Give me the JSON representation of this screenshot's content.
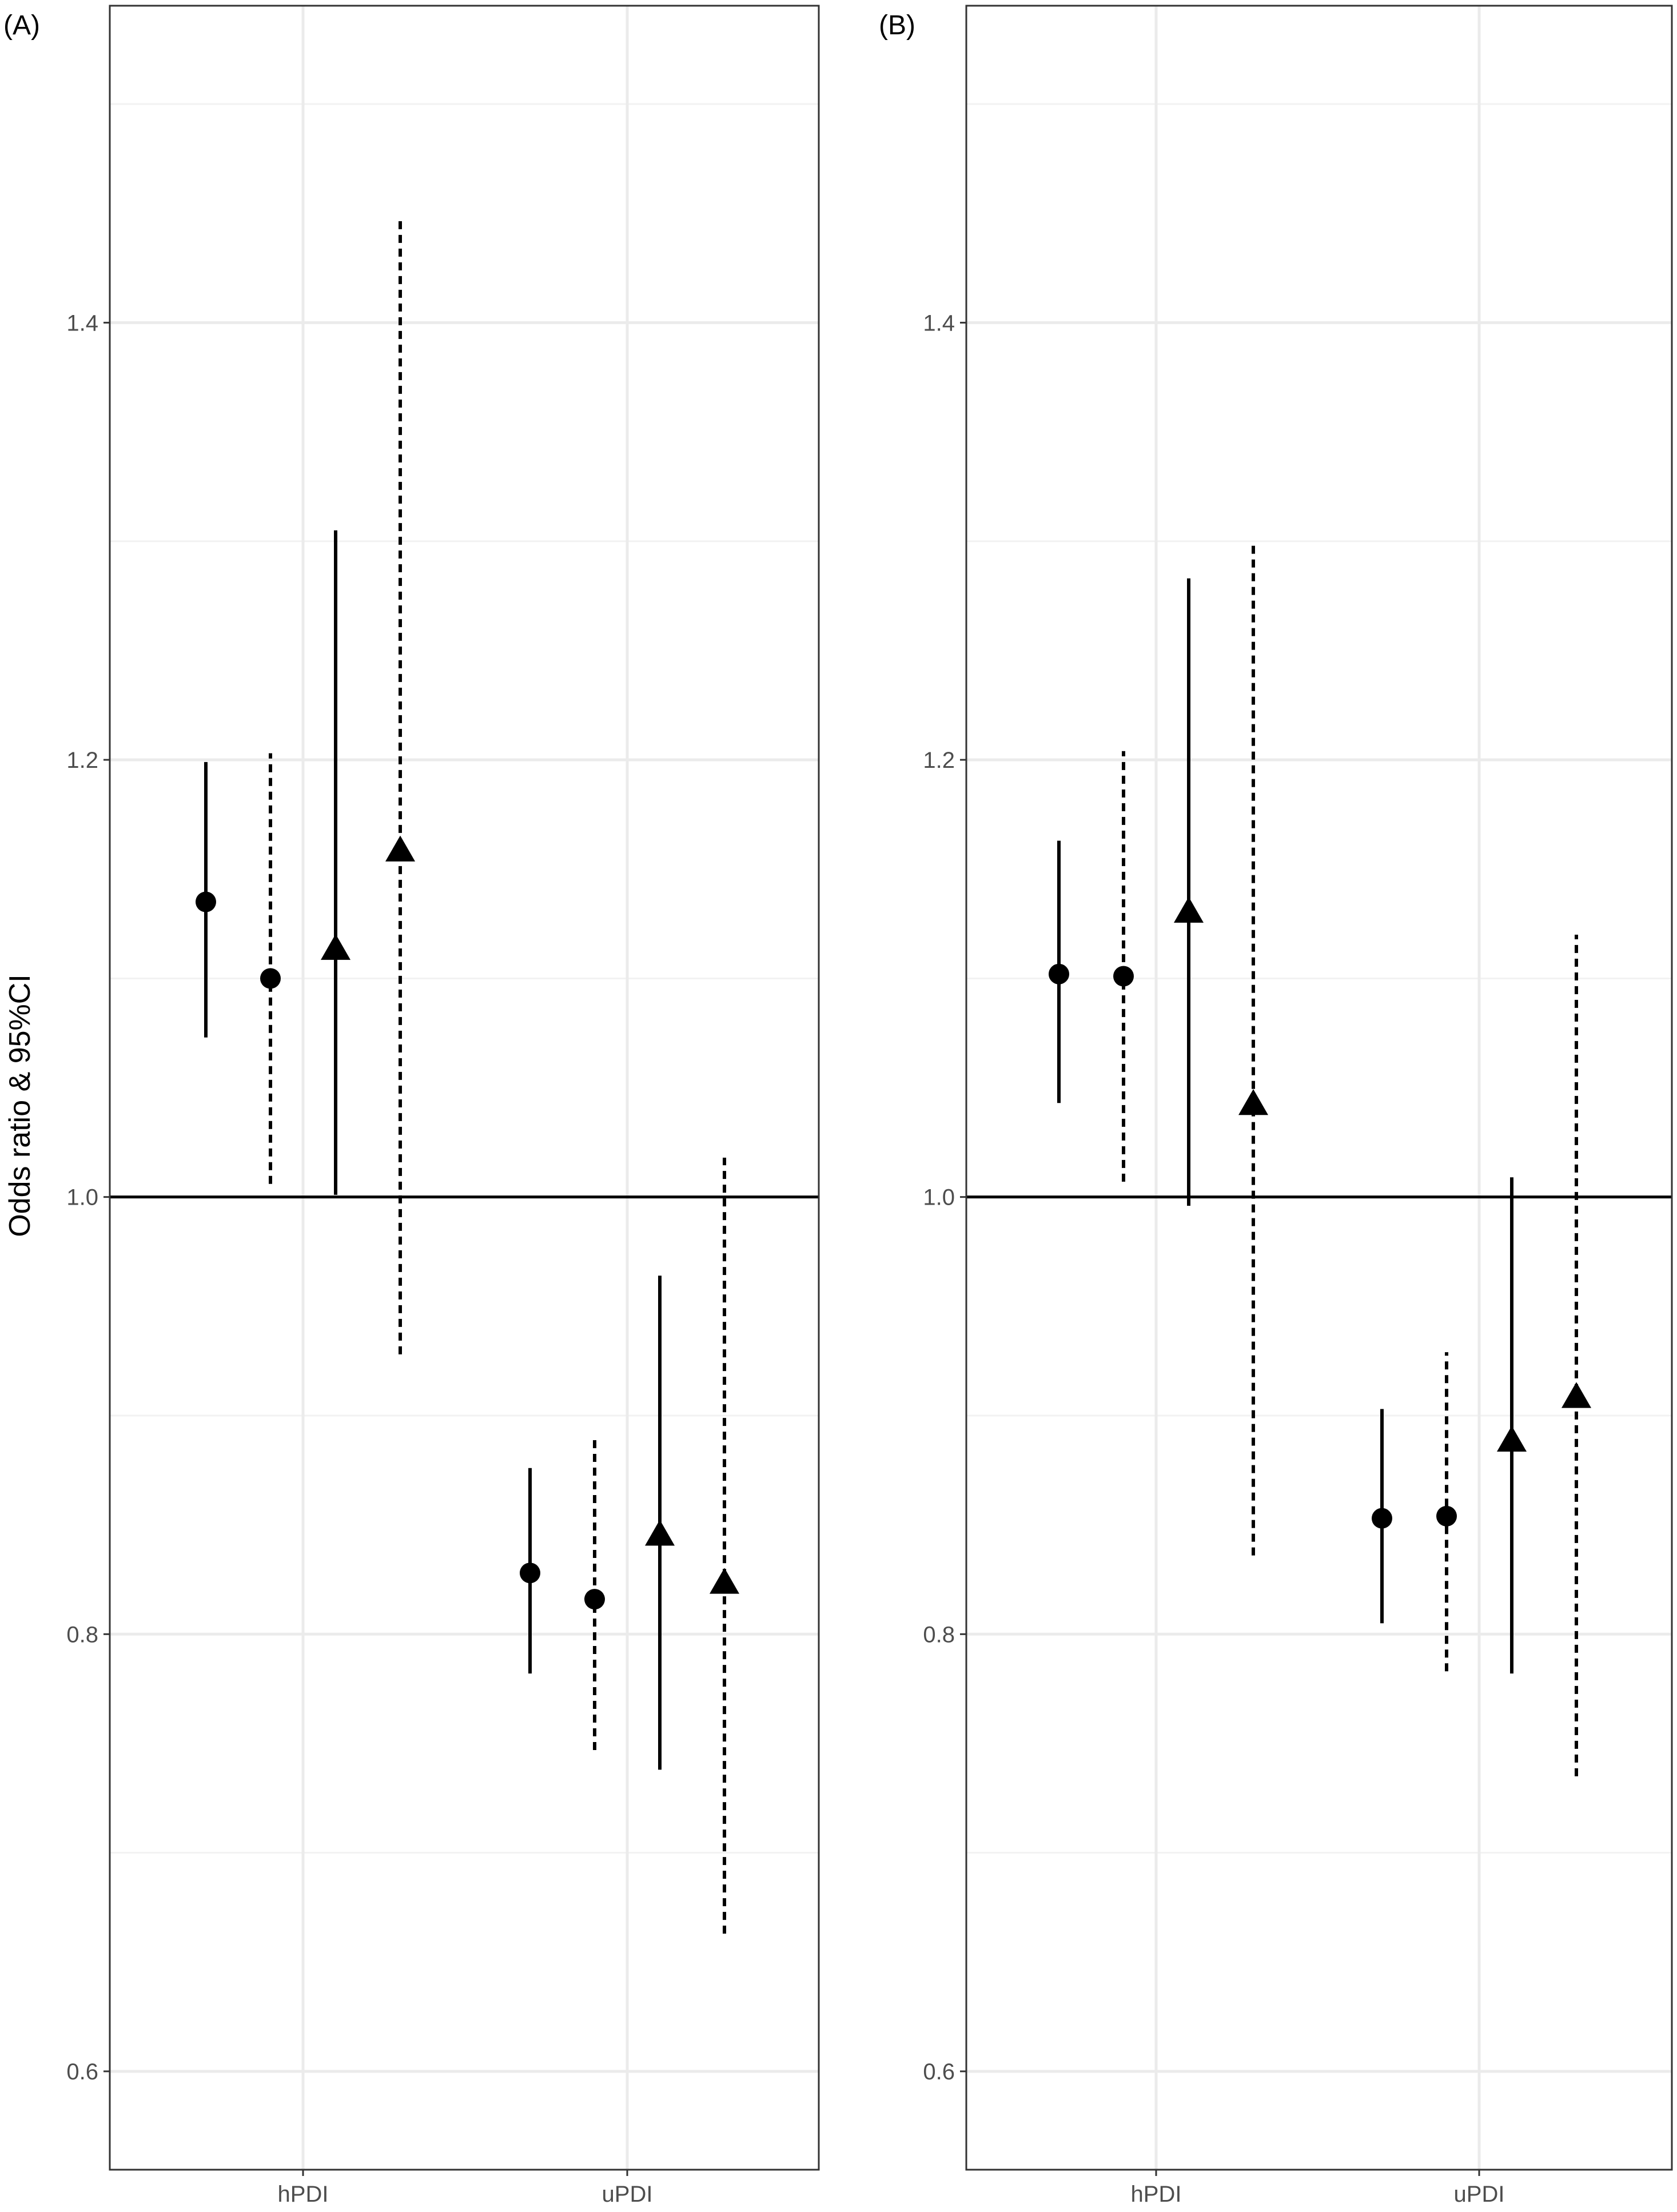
{
  "chart_data": [
    {
      "type": "scatter",
      "panel_label": "(A)",
      "ylabel": "Odds ratio & 95%CI",
      "categories": [
        "hPDI",
        "uPDI"
      ],
      "yticks": [
        0.6,
        0.8,
        1.0,
        1.2,
        1.4
      ],
      "ytick_labels": [
        "0.6",
        "0.8",
        "1.0",
        "1.2",
        "1.4"
      ],
      "ylim": [
        0.555,
        1.545
      ],
      "reference_line": 1.0,
      "grid": true,
      "estimates": [
        {
          "category": "hPDI",
          "slot": 0,
          "shape": "circle",
          "line": "solid",
          "or": 1.135,
          "lower": 1.073,
          "upper": 1.199
        },
        {
          "category": "hPDI",
          "slot": 1,
          "shape": "circle",
          "line": "dashed",
          "or": 1.1,
          "lower": 1.006,
          "upper": 1.203
        },
        {
          "category": "hPDI",
          "slot": 2,
          "shape": "triangle",
          "line": "solid",
          "or": 1.113,
          "lower": 1.001,
          "upper": 1.305
        },
        {
          "category": "hPDI",
          "slot": 3,
          "shape": "triangle",
          "line": "dashed",
          "or": 1.158,
          "lower": 0.928,
          "upper": 1.449
        },
        {
          "category": "uPDI",
          "slot": 0,
          "shape": "circle",
          "line": "solid",
          "or": 0.828,
          "lower": 0.782,
          "upper": 0.876
        },
        {
          "category": "uPDI",
          "slot": 1,
          "shape": "circle",
          "line": "dashed",
          "or": 0.816,
          "lower": 0.747,
          "upper": 0.89
        },
        {
          "category": "uPDI",
          "slot": 2,
          "shape": "triangle",
          "line": "solid",
          "or": 0.845,
          "lower": 0.738,
          "upper": 0.964
        },
        {
          "category": "uPDI",
          "slot": 3,
          "shape": "triangle",
          "line": "dashed",
          "or": 0.823,
          "lower": 0.663,
          "upper": 1.018
        }
      ]
    },
    {
      "type": "scatter",
      "panel_label": "(B)",
      "ylabel": "",
      "categories": [
        "hPDI",
        "uPDI"
      ],
      "yticks": [
        0.6,
        0.8,
        1.0,
        1.2,
        1.4
      ],
      "ytick_labels": [
        "0.6",
        "0.8",
        "1.0",
        "1.2",
        "1.4"
      ],
      "ylim": [
        0.555,
        1.545
      ],
      "reference_line": 1.0,
      "grid": true,
      "estimates": [
        {
          "category": "hPDI",
          "slot": 0,
          "shape": "circle",
          "line": "solid",
          "or": 1.102,
          "lower": 1.043,
          "upper": 1.163
        },
        {
          "category": "hPDI",
          "slot": 1,
          "shape": "circle",
          "line": "dashed",
          "or": 1.101,
          "lower": 1.007,
          "upper": 1.204
        },
        {
          "category": "hPDI",
          "slot": 2,
          "shape": "triangle",
          "line": "solid",
          "or": 1.13,
          "lower": 0.996,
          "upper": 1.283
        },
        {
          "category": "hPDI",
          "slot": 3,
          "shape": "triangle",
          "line": "dashed",
          "or": 1.042,
          "lower": 0.836,
          "upper": 1.298
        },
        {
          "category": "uPDI",
          "slot": 0,
          "shape": "circle",
          "line": "solid",
          "or": 0.853,
          "lower": 0.805,
          "upper": 0.903
        },
        {
          "category": "uPDI",
          "slot": 1,
          "shape": "circle",
          "line": "dashed",
          "or": 0.854,
          "lower": 0.783,
          "upper": 0.929
        },
        {
          "category": "uPDI",
          "slot": 2,
          "shape": "triangle",
          "line": "solid",
          "or": 0.888,
          "lower": 0.782,
          "upper": 1.009
        },
        {
          "category": "uPDI",
          "slot": 3,
          "shape": "triangle",
          "line": "dashed",
          "or": 0.908,
          "lower": 0.735,
          "upper": 1.12
        }
      ]
    }
  ]
}
